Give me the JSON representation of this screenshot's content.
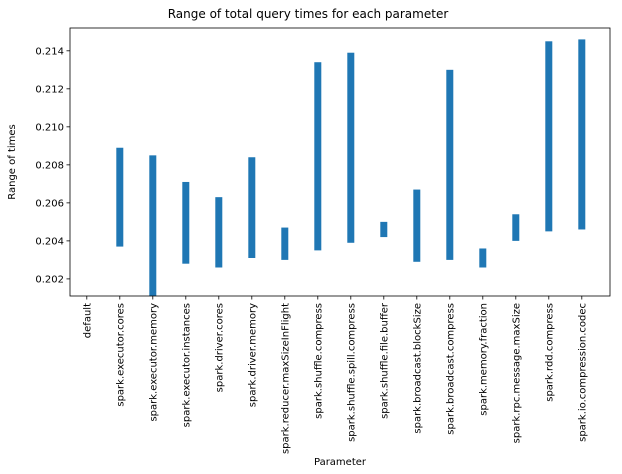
{
  "chart_data": {
    "type": "bar",
    "title": "Range of total query times for each parameter",
    "xlabel": "Parameter",
    "ylabel": "Range of times",
    "ylim": [
      0.2011,
      0.2152
    ],
    "yticks": [
      0.202,
      0.204,
      0.206,
      0.208,
      0.21,
      0.212,
      0.214
    ],
    "ytick_labels": [
      "0.202",
      "0.204",
      "0.206",
      "0.208",
      "0.210",
      "0.212",
      "0.214"
    ],
    "grid": false,
    "legend": "none",
    "bar_color": "#1f77b4",
    "categories": [
      "default",
      "spark.executor.cores",
      "spark.executor.memory",
      "spark.executor.instances",
      "spark.driver.cores",
      "spark.driver.memory",
      "spark.reducer.maxSizeInFlight",
      "spark.shuffle.compress",
      "spark.shuffle.spill.compress",
      "spark.shuffle.file.buffer",
      "spark.broadcast.blockSize",
      "spark.broadcast.compress",
      "spark.memory.fraction",
      "spark.rpc.message.maxSize",
      "spark.rdd.compress",
      "spark.io.compression.codec"
    ],
    "series": [
      {
        "low": [
          null,
          0.2037,
          0.2011,
          0.2028,
          0.2026,
          0.2031,
          0.203,
          0.2035,
          0.2039,
          0.2042,
          0.2029,
          0.203,
          0.2026,
          0.204,
          0.2045,
          0.2046
        ],
        "high": [
          null,
          0.2089,
          0.2085,
          0.2071,
          0.2063,
          0.2084,
          0.2047,
          0.2134,
          0.2139,
          0.205,
          0.2067,
          0.213,
          0.2036,
          0.2054,
          0.2145,
          0.2146
        ]
      }
    ]
  }
}
